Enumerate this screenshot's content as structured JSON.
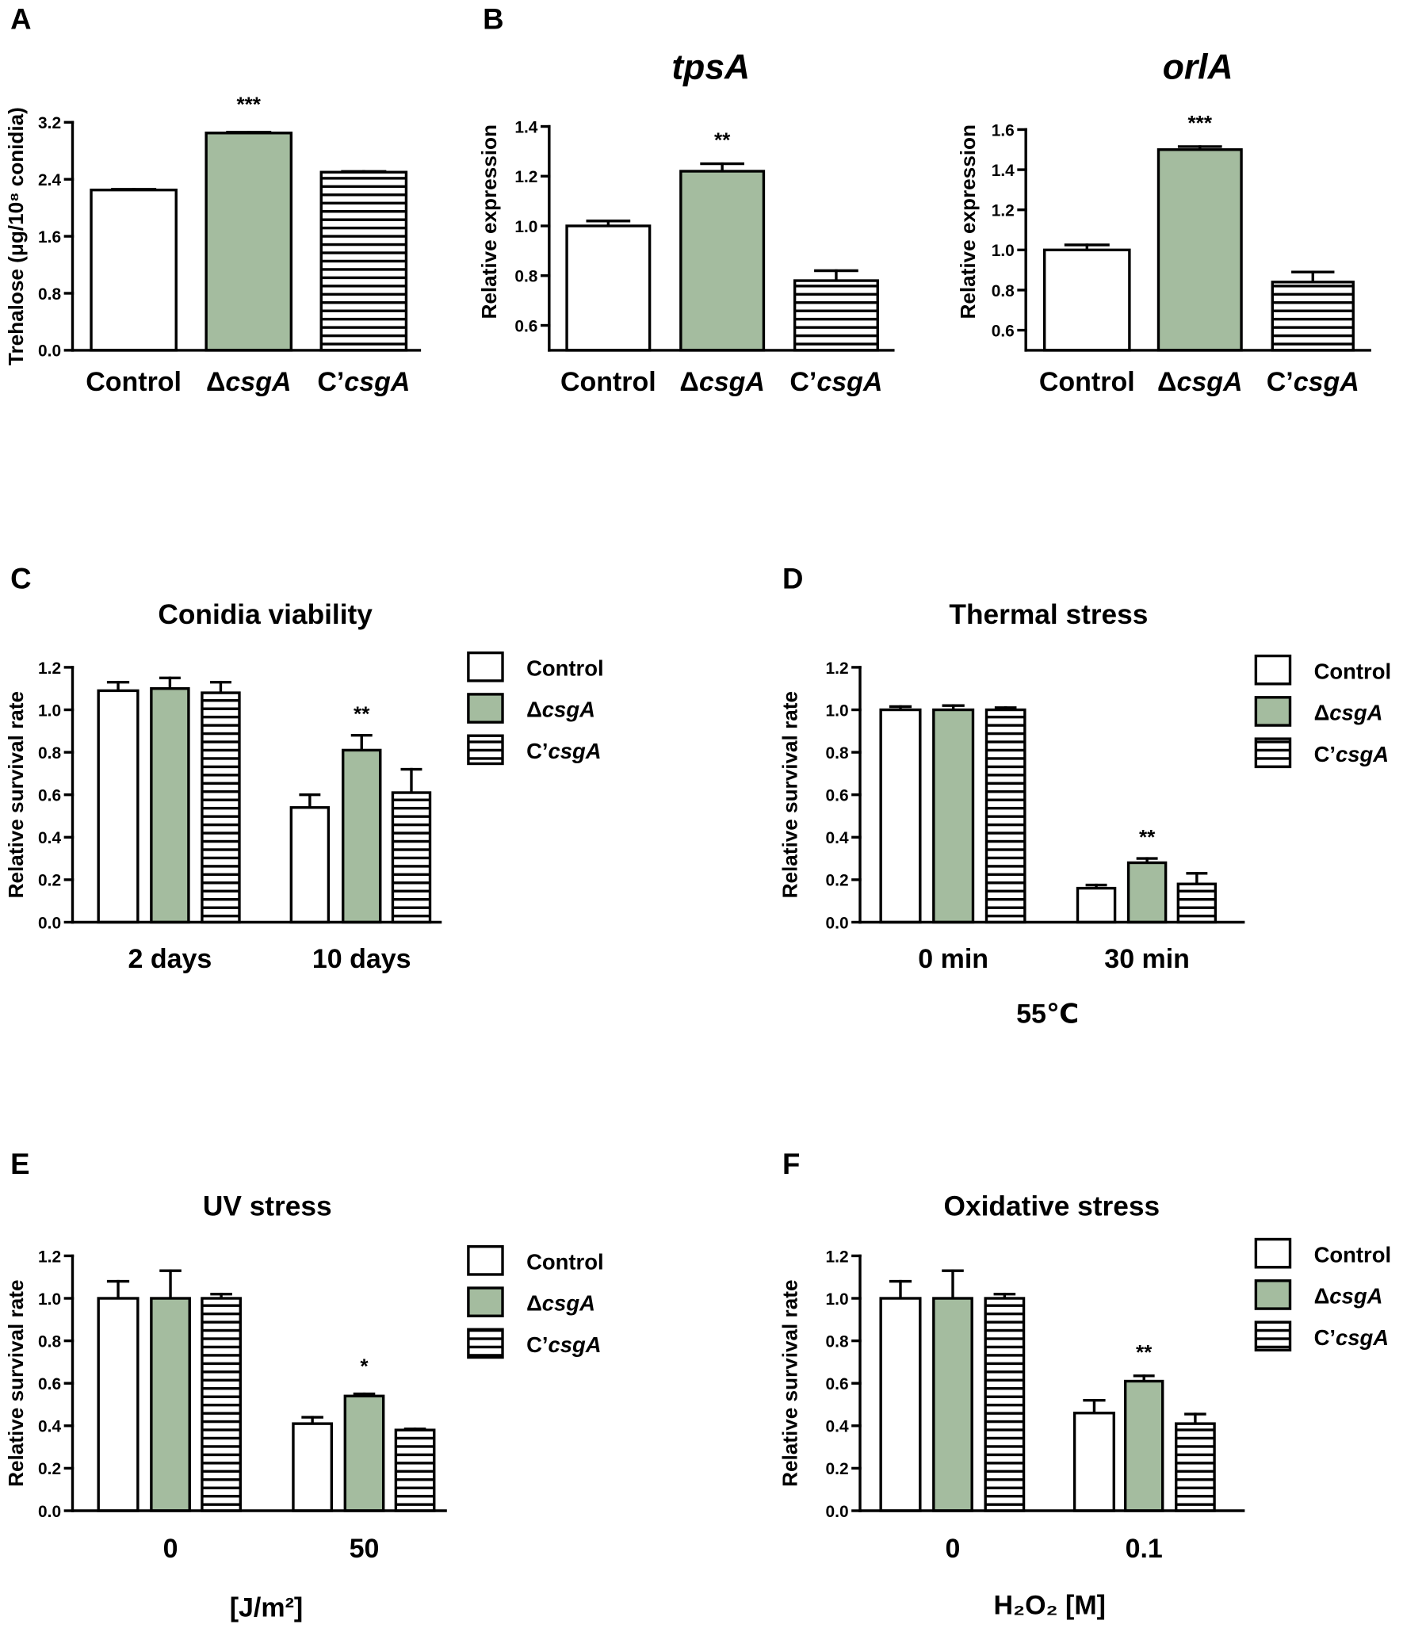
{
  "panel_labels": [
    "A",
    "B",
    "C",
    "D",
    "E",
    "F"
  ],
  "colors": {
    "control": "#ffffff",
    "mutant": "#a4bc9f",
    "complement_hatch": "#000000",
    "axis": "#000000"
  },
  "chart_data": [
    {
      "type": "bar",
      "ylabel": "Trehalose (μg/10⁸ conidia)",
      "ylim": [
        0,
        3.2
      ],
      "yticks": [
        "0.0",
        "0.8",
        "1.6",
        "2.4",
        "3.2"
      ],
      "categories": [
        {
          "plain": "Control"
        },
        {
          "plain": "Δ",
          "italic": "csgA"
        },
        {
          "plain": "C’",
          "italic": "csgA"
        }
      ],
      "values": [
        2.25,
        3.05,
        2.5
      ],
      "errors": [
        0.01,
        0.01,
        0.01
      ],
      "annotations": [
        {
          "text": "***",
          "index": 1
        }
      ]
    },
    {
      "type": "bar",
      "title": "tpsA",
      "ylabel": "Relative expression",
      "ylim": [
        0.5,
        1.4
      ],
      "yticks": [
        "0.6",
        "0.8",
        "1.0",
        "1.2",
        "1.4"
      ],
      "categories": [
        {
          "plain": "Control"
        },
        {
          "plain": "Δ",
          "italic": "csgA"
        },
        {
          "plain": "C’",
          "italic": "csgA"
        }
      ],
      "values": [
        1.0,
        1.22,
        0.78
      ],
      "errors": [
        0.02,
        0.03,
        0.04
      ],
      "annotations": [
        {
          "text": "**",
          "index": 1
        }
      ]
    },
    {
      "type": "bar",
      "title": "orlA",
      "ylabel": "Relative expression",
      "ylim": [
        0.5,
        1.6
      ],
      "yticks": [
        "0.6",
        "0.8",
        "1.0",
        "1.2",
        "1.4",
        "1.6"
      ],
      "categories": [
        {
          "plain": "Control"
        },
        {
          "plain": "Δ",
          "italic": "csgA"
        },
        {
          "plain": "C’",
          "italic": "csgA"
        }
      ],
      "values": [
        1.0,
        1.5,
        0.84
      ],
      "errors": [
        0.025,
        0.015,
        0.05
      ],
      "annotations": [
        {
          "text": "***",
          "index": 1
        }
      ]
    },
    {
      "type": "bar",
      "title": "Conidia viability",
      "ylabel": "Relative survival rate",
      "ylim": [
        0,
        1.2
      ],
      "yticks": [
        "0.0",
        "0.2",
        "0.4",
        "0.6",
        "0.8",
        "1.0",
        "1.2"
      ],
      "groups": [
        "2 days",
        "10 days"
      ],
      "series": [
        {
          "name": {
            "plain": "Control"
          },
          "values": [
            1.09,
            0.54
          ],
          "errors": [
            0.04,
            0.06
          ]
        },
        {
          "name": {
            "plain": "Δ",
            "italic": "csgA"
          },
          "values": [
            1.1,
            0.81
          ],
          "errors": [
            0.05,
            0.07
          ]
        },
        {
          "name": {
            "plain": "C’",
            "italic": "csgA"
          },
          "values": [
            1.08,
            0.61
          ],
          "errors": [
            0.05,
            0.11
          ]
        }
      ],
      "annotations": [
        {
          "text": "**",
          "series": 1,
          "group": 1
        }
      ]
    },
    {
      "type": "bar",
      "title": "Thermal stress",
      "ylabel": "Relative survival rate",
      "xlabel": "55℃",
      "ylim": [
        0,
        1.2
      ],
      "yticks": [
        "0.0",
        "0.2",
        "0.4",
        "0.6",
        "0.8",
        "1.0",
        "1.2"
      ],
      "groups": [
        "0 min",
        "30 min"
      ],
      "series": [
        {
          "name": {
            "plain": "Control"
          },
          "values": [
            1.0,
            0.16
          ],
          "errors": [
            0.015,
            0.015
          ]
        },
        {
          "name": {
            "plain": "Δ",
            "italic": "csgA"
          },
          "values": [
            1.0,
            0.28
          ],
          "errors": [
            0.02,
            0.02
          ]
        },
        {
          "name": {
            "plain": "C’",
            "italic": "csgA"
          },
          "values": [
            1.0,
            0.18
          ],
          "errors": [
            0.01,
            0.05
          ]
        }
      ],
      "annotations": [
        {
          "text": "**",
          "series": 1,
          "group": 1
        }
      ]
    },
    {
      "type": "bar",
      "title": "UV stress",
      "ylabel": "Relative survival rate",
      "xlabel": "[J/m²]",
      "ylim": [
        0,
        1.2
      ],
      "yticks": [
        "0.0",
        "0.2",
        "0.4",
        "0.6",
        "0.8",
        "1.0",
        "1.2"
      ],
      "groups": [
        "0",
        "50"
      ],
      "series": [
        {
          "name": {
            "plain": "Control"
          },
          "values": [
            1.0,
            0.41
          ],
          "errors": [
            0.08,
            0.03
          ]
        },
        {
          "name": {
            "plain": "Δ",
            "italic": "csgA"
          },
          "values": [
            1.0,
            0.54
          ],
          "errors": [
            0.13,
            0.01
          ]
        },
        {
          "name": {
            "plain": "C’",
            "italic": "csgA"
          },
          "values": [
            1.0,
            0.38
          ],
          "errors": [
            0.02,
            0.005
          ]
        }
      ],
      "annotations": [
        {
          "text": "*",
          "series": 1,
          "group": 1
        }
      ]
    },
    {
      "type": "bar",
      "title": "Oxidative stress",
      "ylabel": "Relative survival rate",
      "xlabel": "H₂O₂ [M]",
      "ylim": [
        0,
        1.2
      ],
      "yticks": [
        "0.0",
        "0.2",
        "0.4",
        "0.6",
        "0.8",
        "1.0",
        "1.2"
      ],
      "groups": [
        "0",
        "0.1"
      ],
      "series": [
        {
          "name": {
            "plain": "Control"
          },
          "values": [
            1.0,
            0.46
          ],
          "errors": [
            0.08,
            0.06
          ]
        },
        {
          "name": {
            "plain": "Δ",
            "italic": "csgA"
          },
          "values": [
            1.0,
            0.61
          ],
          "errors": [
            0.13,
            0.025
          ]
        },
        {
          "name": {
            "plain": "C’",
            "italic": "csgA"
          },
          "values": [
            1.0,
            0.41
          ],
          "errors": [
            0.02,
            0.045
          ]
        }
      ],
      "annotations": [
        {
          "text": "**",
          "series": 1,
          "group": 1
        }
      ]
    }
  ]
}
